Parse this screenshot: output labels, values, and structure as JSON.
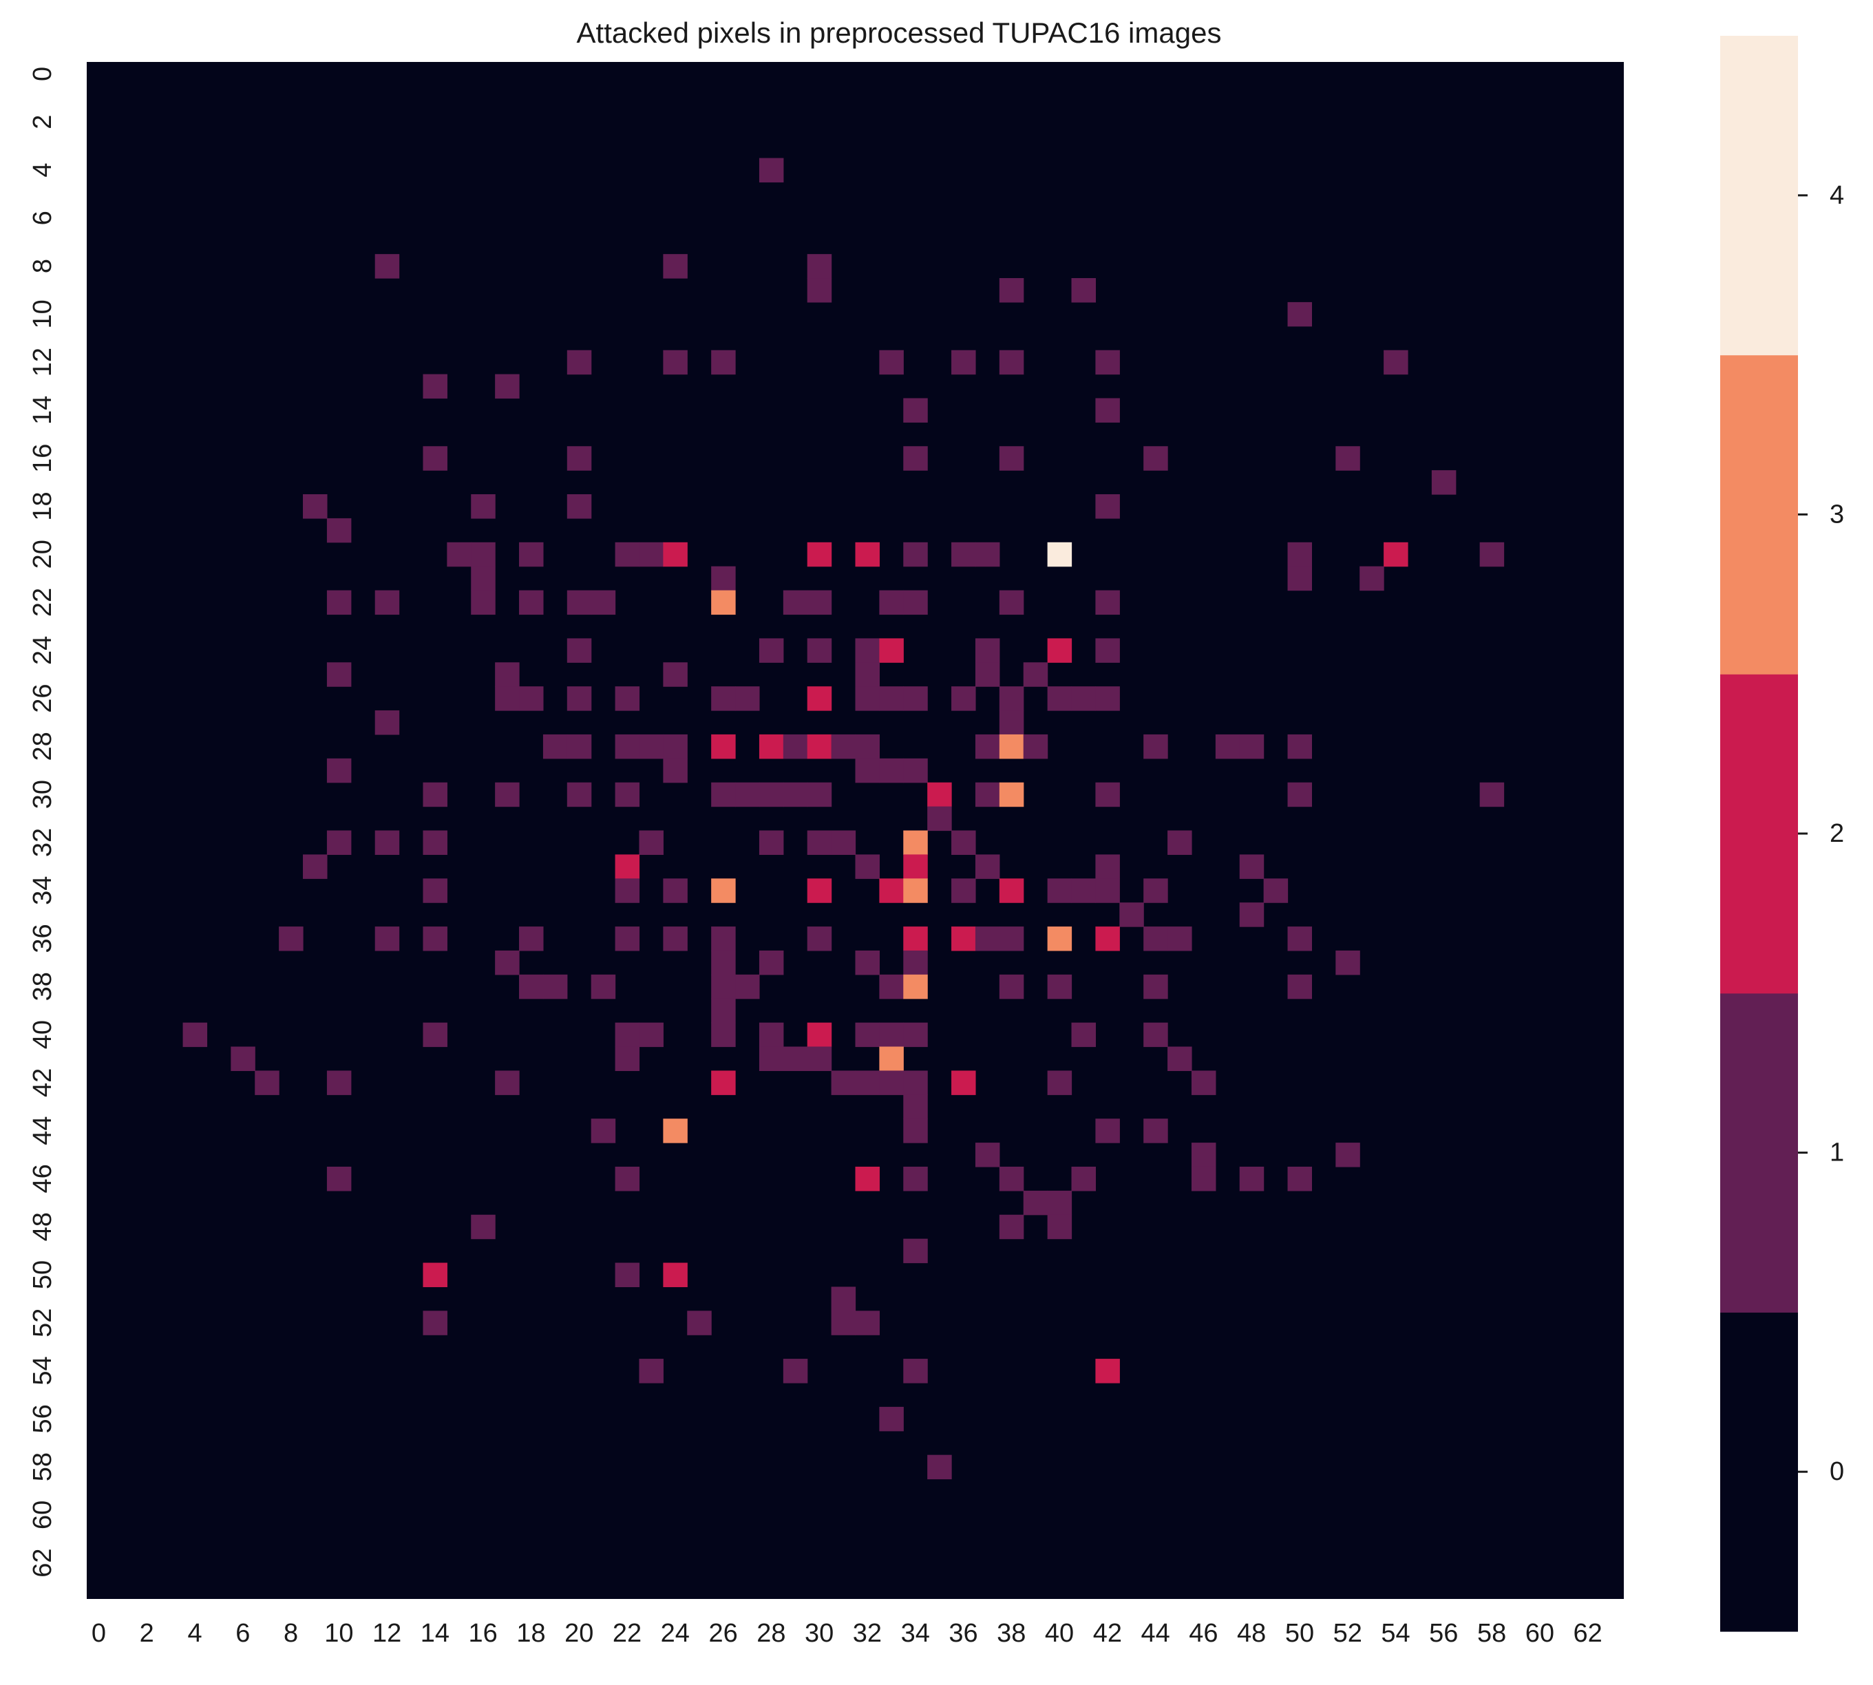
{
  "chart_data": {
    "type": "heatmap",
    "title": "Attacked pixels in preprocessed TUPAC16 images",
    "xlabel": "",
    "ylabel": "",
    "rows": 64,
    "cols": 64,
    "x_tick_labels": [
      "0",
      "2",
      "4",
      "6",
      "8",
      "10",
      "12",
      "14",
      "16",
      "18",
      "20",
      "22",
      "24",
      "26",
      "28",
      "30",
      "32",
      "34",
      "36",
      "38",
      "40",
      "42",
      "44",
      "46",
      "48",
      "50",
      "52",
      "54",
      "56",
      "58",
      "60",
      "62"
    ],
    "y_tick_labels": [
      "0",
      "2",
      "4",
      "6",
      "8",
      "10",
      "12",
      "14",
      "16",
      "18",
      "20",
      "22",
      "24",
      "26",
      "28",
      "30",
      "32",
      "34",
      "36",
      "38",
      "40",
      "42",
      "44",
      "46",
      "48",
      "50",
      "52",
      "54",
      "56",
      "58",
      "60",
      "62"
    ],
    "background_value": 0,
    "nonzero_cells": [
      [
        4,
        28,
        1
      ],
      [
        8,
        12,
        1
      ],
      [
        8,
        24,
        1
      ],
      [
        8,
        30,
        1
      ],
      [
        9,
        30,
        1
      ],
      [
        9,
        38,
        1
      ],
      [
        9,
        41,
        1
      ],
      [
        10,
        50,
        1
      ],
      [
        12,
        20,
        1
      ],
      [
        12,
        24,
        1
      ],
      [
        12,
        26,
        1
      ],
      [
        12,
        33,
        1
      ],
      [
        12,
        36,
        1
      ],
      [
        12,
        38,
        1
      ],
      [
        12,
        42,
        1
      ],
      [
        12,
        54,
        1
      ],
      [
        13,
        14,
        1
      ],
      [
        13,
        17,
        1
      ],
      [
        14,
        34,
        1
      ],
      [
        14,
        42,
        1
      ],
      [
        16,
        14,
        1
      ],
      [
        16,
        20,
        1
      ],
      [
        16,
        34,
        1
      ],
      [
        16,
        38,
        1
      ],
      [
        16,
        44,
        1
      ],
      [
        16,
        52,
        1
      ],
      [
        17,
        56,
        1
      ],
      [
        18,
        9,
        1
      ],
      [
        18,
        16,
        1
      ],
      [
        18,
        20,
        1
      ],
      [
        18,
        42,
        1
      ],
      [
        19,
        10,
        1
      ],
      [
        20,
        15,
        1
      ],
      [
        20,
        16,
        1
      ],
      [
        20,
        18,
        1
      ],
      [
        20,
        22,
        1
      ],
      [
        20,
        23,
        1
      ],
      [
        20,
        24,
        2
      ],
      [
        20,
        30,
        2
      ],
      [
        20,
        32,
        2
      ],
      [
        20,
        34,
        1
      ],
      [
        20,
        36,
        1
      ],
      [
        20,
        37,
        1
      ],
      [
        20,
        40,
        4
      ],
      [
        20,
        50,
        1
      ],
      [
        20,
        54,
        2
      ],
      [
        20,
        58,
        1
      ],
      [
        21,
        16,
        1
      ],
      [
        21,
        26,
        1
      ],
      [
        21,
        50,
        1
      ],
      [
        21,
        53,
        1
      ],
      [
        22,
        10,
        1
      ],
      [
        22,
        12,
        1
      ],
      [
        22,
        16,
        1
      ],
      [
        22,
        18,
        1
      ],
      [
        22,
        20,
        1
      ],
      [
        22,
        21,
        1
      ],
      [
        22,
        26,
        3
      ],
      [
        22,
        29,
        1
      ],
      [
        22,
        30,
        1
      ],
      [
        22,
        33,
        1
      ],
      [
        22,
        34,
        1
      ],
      [
        22,
        38,
        1
      ],
      [
        22,
        42,
        1
      ],
      [
        24,
        20,
        1
      ],
      [
        24,
        28,
        1
      ],
      [
        24,
        30,
        1
      ],
      [
        24,
        32,
        1
      ],
      [
        24,
        33,
        2
      ],
      [
        24,
        37,
        1
      ],
      [
        24,
        40,
        2
      ],
      [
        24,
        42,
        1
      ],
      [
        25,
        10,
        1
      ],
      [
        25,
        17,
        1
      ],
      [
        25,
        24,
        1
      ],
      [
        25,
        32,
        1
      ],
      [
        25,
        37,
        1
      ],
      [
        25,
        39,
        1
      ],
      [
        26,
        17,
        1
      ],
      [
        26,
        18,
        1
      ],
      [
        26,
        20,
        1
      ],
      [
        26,
        22,
        1
      ],
      [
        26,
        26,
        1
      ],
      [
        26,
        27,
        1
      ],
      [
        26,
        30,
        2
      ],
      [
        26,
        32,
        1
      ],
      [
        26,
        33,
        1
      ],
      [
        26,
        34,
        1
      ],
      [
        26,
        36,
        1
      ],
      [
        26,
        38,
        1
      ],
      [
        26,
        40,
        1
      ],
      [
        26,
        41,
        1
      ],
      [
        26,
        42,
        1
      ],
      [
        27,
        12,
        1
      ],
      [
        27,
        38,
        1
      ],
      [
        28,
        19,
        1
      ],
      [
        28,
        20,
        1
      ],
      [
        28,
        22,
        1
      ],
      [
        28,
        23,
        1
      ],
      [
        28,
        24,
        1
      ],
      [
        28,
        26,
        2
      ],
      [
        28,
        28,
        2
      ],
      [
        28,
        29,
        1
      ],
      [
        28,
        30,
        2
      ],
      [
        28,
        31,
        1
      ],
      [
        28,
        32,
        1
      ],
      [
        28,
        37,
        1
      ],
      [
        28,
        38,
        3
      ],
      [
        28,
        39,
        1
      ],
      [
        28,
        44,
        1
      ],
      [
        28,
        47,
        1
      ],
      [
        28,
        48,
        1
      ],
      [
        28,
        50,
        1
      ],
      [
        29,
        10,
        1
      ],
      [
        29,
        24,
        1
      ],
      [
        29,
        32,
        1
      ],
      [
        29,
        33,
        1
      ],
      [
        29,
        34,
        1
      ],
      [
        30,
        14,
        1
      ],
      [
        30,
        17,
        1
      ],
      [
        30,
        20,
        1
      ],
      [
        30,
        22,
        1
      ],
      [
        30,
        26,
        1
      ],
      [
        30,
        27,
        1
      ],
      [
        30,
        28,
        1
      ],
      [
        30,
        29,
        1
      ],
      [
        30,
        30,
        1
      ],
      [
        30,
        35,
        2
      ],
      [
        30,
        37,
        1
      ],
      [
        30,
        38,
        3
      ],
      [
        30,
        42,
        1
      ],
      [
        30,
        50,
        1
      ],
      [
        30,
        58,
        1
      ],
      [
        31,
        35,
        1
      ],
      [
        32,
        10,
        1
      ],
      [
        32,
        12,
        1
      ],
      [
        32,
        14,
        1
      ],
      [
        32,
        23,
        1
      ],
      [
        32,
        28,
        1
      ],
      [
        32,
        30,
        1
      ],
      [
        32,
        31,
        1
      ],
      [
        32,
        34,
        3
      ],
      [
        32,
        36,
        1
      ],
      [
        32,
        45,
        1
      ],
      [
        33,
        9,
        1
      ],
      [
        33,
        22,
        2
      ],
      [
        33,
        32,
        1
      ],
      [
        33,
        34,
        2
      ],
      [
        33,
        37,
        1
      ],
      [
        33,
        42,
        1
      ],
      [
        33,
        48,
        1
      ],
      [
        34,
        14,
        1
      ],
      [
        34,
        22,
        1
      ],
      [
        34,
        24,
        1
      ],
      [
        34,
        26,
        3
      ],
      [
        34,
        30,
        2
      ],
      [
        34,
        33,
        2
      ],
      [
        34,
        34,
        3
      ],
      [
        34,
        36,
        1
      ],
      [
        34,
        38,
        2
      ],
      [
        34,
        40,
        1
      ],
      [
        34,
        41,
        1
      ],
      [
        34,
        42,
        1
      ],
      [
        34,
        44,
        1
      ],
      [
        34,
        49,
        1
      ],
      [
        35,
        43,
        1
      ],
      [
        35,
        48,
        1
      ],
      [
        36,
        8,
        1
      ],
      [
        36,
        12,
        1
      ],
      [
        36,
        14,
        1
      ],
      [
        36,
        18,
        1
      ],
      [
        36,
        22,
        1
      ],
      [
        36,
        24,
        1
      ],
      [
        36,
        26,
        1
      ],
      [
        36,
        30,
        1
      ],
      [
        36,
        34,
        2
      ],
      [
        36,
        36,
        2
      ],
      [
        36,
        37,
        1
      ],
      [
        36,
        38,
        1
      ],
      [
        36,
        40,
        3
      ],
      [
        36,
        42,
        2
      ],
      [
        36,
        44,
        1
      ],
      [
        36,
        45,
        1
      ],
      [
        36,
        50,
        1
      ],
      [
        37,
        17,
        1
      ],
      [
        37,
        26,
        1
      ],
      [
        37,
        28,
        1
      ],
      [
        37,
        32,
        1
      ],
      [
        37,
        34,
        1
      ],
      [
        37,
        52,
        1
      ],
      [
        38,
        18,
        1
      ],
      [
        38,
        19,
        1
      ],
      [
        38,
        21,
        1
      ],
      [
        38,
        26,
        1
      ],
      [
        38,
        27,
        1
      ],
      [
        38,
        33,
        1
      ],
      [
        38,
        34,
        3
      ],
      [
        38,
        38,
        1
      ],
      [
        38,
        40,
        1
      ],
      [
        38,
        44,
        1
      ],
      [
        38,
        50,
        1
      ],
      [
        39,
        26,
        1
      ],
      [
        40,
        4,
        1
      ],
      [
        40,
        14,
        1
      ],
      [
        40,
        22,
        1
      ],
      [
        40,
        23,
        1
      ],
      [
        40,
        26,
        1
      ],
      [
        40,
        28,
        1
      ],
      [
        40,
        30,
        2
      ],
      [
        40,
        32,
        1
      ],
      [
        40,
        33,
        1
      ],
      [
        40,
        34,
        1
      ],
      [
        40,
        41,
        1
      ],
      [
        40,
        44,
        1
      ],
      [
        41,
        6,
        1
      ],
      [
        41,
        22,
        1
      ],
      [
        41,
        28,
        1
      ],
      [
        41,
        29,
        1
      ],
      [
        41,
        30,
        1
      ],
      [
        41,
        33,
        3
      ],
      [
        41,
        45,
        1
      ],
      [
        42,
        7,
        1
      ],
      [
        42,
        10,
        1
      ],
      [
        42,
        17,
        1
      ],
      [
        42,
        26,
        2
      ],
      [
        42,
        31,
        1
      ],
      [
        42,
        32,
        1
      ],
      [
        42,
        33,
        1
      ],
      [
        42,
        34,
        1
      ],
      [
        42,
        36,
        2
      ],
      [
        42,
        40,
        1
      ],
      [
        42,
        46,
        1
      ],
      [
        43,
        34,
        1
      ],
      [
        44,
        21,
        1
      ],
      [
        44,
        24,
        3
      ],
      [
        44,
        34,
        1
      ],
      [
        44,
        42,
        1
      ],
      [
        44,
        44,
        1
      ],
      [
        45,
        37,
        1
      ],
      [
        45,
        46,
        1
      ],
      [
        45,
        52,
        1
      ],
      [
        46,
        10,
        1
      ],
      [
        46,
        22,
        1
      ],
      [
        46,
        32,
        2
      ],
      [
        46,
        34,
        1
      ],
      [
        46,
        38,
        1
      ],
      [
        46,
        41,
        1
      ],
      [
        46,
        46,
        1
      ],
      [
        46,
        48,
        1
      ],
      [
        46,
        50,
        1
      ],
      [
        47,
        39,
        1
      ],
      [
        47,
        40,
        1
      ],
      [
        48,
        16,
        1
      ],
      [
        48,
        38,
        1
      ],
      [
        48,
        40,
        1
      ],
      [
        49,
        34,
        1
      ],
      [
        50,
        14,
        2
      ],
      [
        50,
        22,
        1
      ],
      [
        50,
        24,
        2
      ],
      [
        51,
        31,
        1
      ],
      [
        52,
        14,
        1
      ],
      [
        52,
        25,
        1
      ],
      [
        52,
        31,
        1
      ],
      [
        52,
        32,
        1
      ],
      [
        54,
        23,
        1
      ],
      [
        54,
        29,
        1
      ],
      [
        54,
        34,
        1
      ],
      [
        54,
        42,
        2
      ],
      [
        56,
        33,
        1
      ],
      [
        58,
        35,
        1
      ]
    ],
    "colorbar": {
      "ticks": [
        "0",
        "1",
        "2",
        "3",
        "4"
      ],
      "vmin": -0.5,
      "vmax": 4.5,
      "colors": [
        "#03051a",
        "#621f54",
        "#cb1b4f",
        "#f38b63",
        "#faebdd"
      ]
    }
  }
}
